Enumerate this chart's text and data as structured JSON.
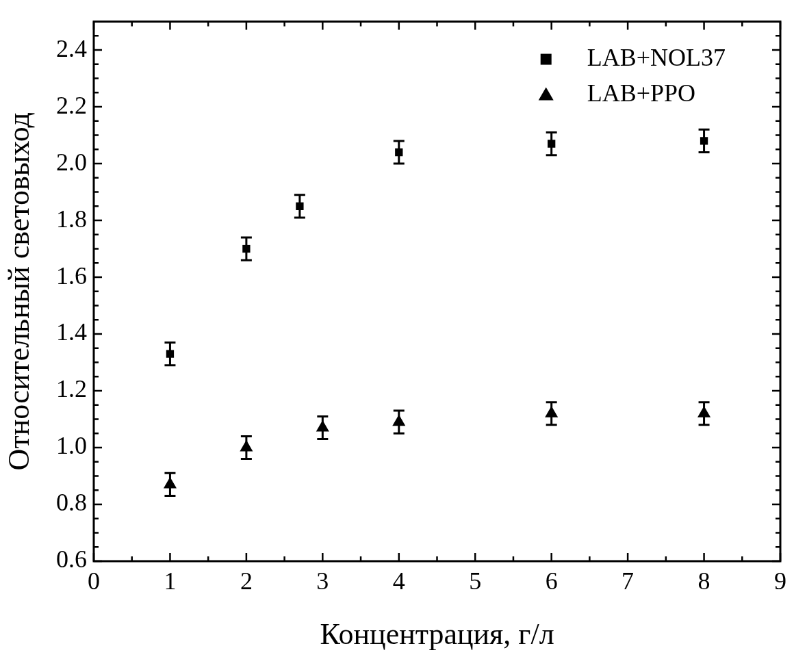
{
  "chart_data": {
    "type": "scatter",
    "xlabel": "Концентрация, г/л",
    "ylabel": "Относительный световыход",
    "xlim": [
      0,
      9
    ],
    "xticks": [
      0,
      1,
      2,
      3,
      4,
      5,
      6,
      7,
      8,
      9
    ],
    "ylim": [
      0.6,
      2.5
    ],
    "yticks": [
      0.6,
      0.8,
      {
        "value": 1,
        "label": "1.0"
      },
      1.2,
      1.4,
      1.6,
      1.8,
      {
        "value": 2,
        "label": "2.0"
      },
      2.2,
      2.4
    ],
    "grid": false,
    "legend": "top right",
    "series": [
      {
        "name": "LAB+NOL37",
        "color": "#000000",
        "marker": "square",
        "x": [
          1,
          2,
          2.7,
          4,
          6,
          8
        ],
        "values": [
          1.33,
          1.7,
          1.85,
          2.04,
          2.07,
          2.08
        ],
        "errors": [
          0.04,
          0.04,
          0.04,
          0.04,
          0.04,
          0.04
        ]
      },
      {
        "name": "LAB+PPO",
        "color": "#000000",
        "marker": "triangle",
        "x": [
          1,
          2,
          3,
          4,
          6,
          8
        ],
        "values": [
          0.87,
          1.0,
          1.07,
          1.09,
          1.12,
          1.12
        ],
        "errors": [
          0.04,
          0.04,
          0.04,
          0.04,
          0.04,
          0.04
        ]
      }
    ]
  }
}
